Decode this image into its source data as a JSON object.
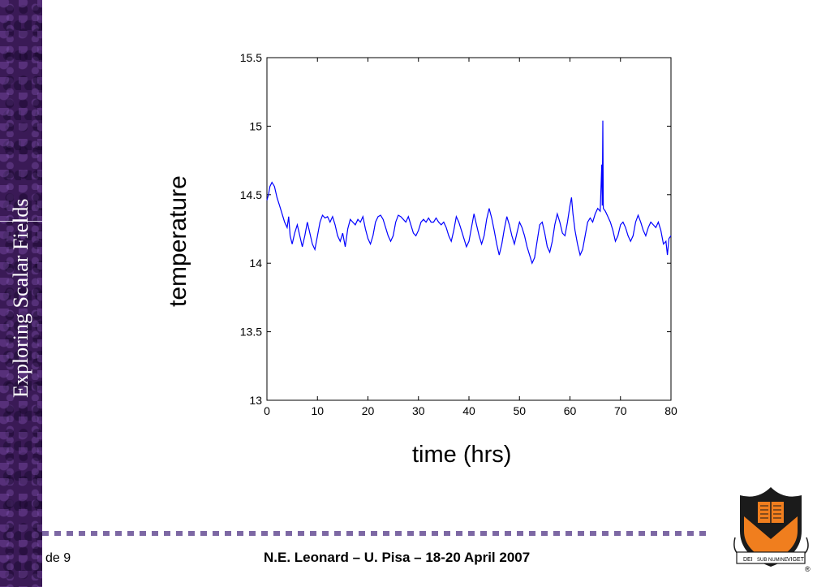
{
  "sidebar": {
    "title": "Exploring Scalar Fields"
  },
  "footer": {
    "slide_number": "de 9",
    "text": "N.E. Leonard – U. Pisa – 18-20 April 2007"
  },
  "logo": {
    "icon": "princeton-shield-icon",
    "motto_left": "DEI",
    "motto_center": "SUB NUMINE",
    "motto_right": "VIGET",
    "registered": "®"
  },
  "colors": {
    "sidebar": "#3a1a56",
    "line": "#0000ff",
    "divider": "#7d68a4",
    "shield": "#f07e1e"
  },
  "chart_data": {
    "type": "line",
    "title": "",
    "xlabel": "time (hrs)",
    "ylabel": "temperature",
    "xlim": [
      0,
      80
    ],
    "ylim": [
      13,
      15.5
    ],
    "xticks": [
      0,
      10,
      20,
      30,
      40,
      50,
      60,
      70,
      80
    ],
    "yticks": [
      13,
      13.5,
      14,
      14.5,
      15,
      15.5
    ],
    "ytick_labels": [
      "13",
      "13.5",
      "14",
      "14.5",
      "15",
      "15.5"
    ],
    "grid": false,
    "series": [
      {
        "color": "#0000ff",
        "points": [
          [
            0,
            14.46
          ],
          [
            0.3,
            14.5
          ],
          [
            0.6,
            14.56
          ],
          [
            1.0,
            14.59
          ],
          [
            1.5,
            14.56
          ],
          [
            2.0,
            14.48
          ],
          [
            2.5,
            14.42
          ],
          [
            3.0,
            14.36
          ],
          [
            3.5,
            14.3
          ],
          [
            4.0,
            14.26
          ],
          [
            4.3,
            14.34
          ],
          [
            4.6,
            14.2
          ],
          [
            5.0,
            14.14
          ],
          [
            5.5,
            14.22
          ],
          [
            6.0,
            14.28
          ],
          [
            6.5,
            14.2
          ],
          [
            7.0,
            14.12
          ],
          [
            7.5,
            14.2
          ],
          [
            8.0,
            14.3
          ],
          [
            8.5,
            14.22
          ],
          [
            9.0,
            14.14
          ],
          [
            9.5,
            14.1
          ],
          [
            10.0,
            14.2
          ],
          [
            10.5,
            14.3
          ],
          [
            11.0,
            14.35
          ],
          [
            11.5,
            14.33
          ],
          [
            12.0,
            14.34
          ],
          [
            12.5,
            14.3
          ],
          [
            13.0,
            14.34
          ],
          [
            13.5,
            14.28
          ],
          [
            14.0,
            14.2
          ],
          [
            14.5,
            14.16
          ],
          [
            15.0,
            14.22
          ],
          [
            15.5,
            14.12
          ],
          [
            16.0,
            14.25
          ],
          [
            16.5,
            14.32
          ],
          [
            17.0,
            14.3
          ],
          [
            17.5,
            14.28
          ],
          [
            18.0,
            14.32
          ],
          [
            18.5,
            14.3
          ],
          [
            19.0,
            14.34
          ],
          [
            19.5,
            14.25
          ],
          [
            20.0,
            14.18
          ],
          [
            20.5,
            14.14
          ],
          [
            21.0,
            14.2
          ],
          [
            21.5,
            14.3
          ],
          [
            22.0,
            14.34
          ],
          [
            22.5,
            14.35
          ],
          [
            23.0,
            14.32
          ],
          [
            23.5,
            14.26
          ],
          [
            24.0,
            14.2
          ],
          [
            24.5,
            14.16
          ],
          [
            25.0,
            14.2
          ],
          [
            25.5,
            14.3
          ],
          [
            26.0,
            14.35
          ],
          [
            26.5,
            14.34
          ],
          [
            27.0,
            14.32
          ],
          [
            27.5,
            14.3
          ],
          [
            28.0,
            14.34
          ],
          [
            28.5,
            14.28
          ],
          [
            29.0,
            14.22
          ],
          [
            29.5,
            14.2
          ],
          [
            30.0,
            14.24
          ],
          [
            30.5,
            14.3
          ],
          [
            31.0,
            14.32
          ],
          [
            31.5,
            14.3
          ],
          [
            32.0,
            14.33
          ],
          [
            32.5,
            14.3
          ],
          [
            33.0,
            14.3
          ],
          [
            33.5,
            14.33
          ],
          [
            34.0,
            14.3
          ],
          [
            34.5,
            14.28
          ],
          [
            35.0,
            14.3
          ],
          [
            35.5,
            14.26
          ],
          [
            36.0,
            14.2
          ],
          [
            36.5,
            14.16
          ],
          [
            37.0,
            14.24
          ],
          [
            37.5,
            14.34
          ],
          [
            38.0,
            14.3
          ],
          [
            38.5,
            14.24
          ],
          [
            39.0,
            14.18
          ],
          [
            39.5,
            14.12
          ],
          [
            40.0,
            14.16
          ],
          [
            40.5,
            14.26
          ],
          [
            41.0,
            14.36
          ],
          [
            41.5,
            14.28
          ],
          [
            42.0,
            14.2
          ],
          [
            42.5,
            14.14
          ],
          [
            43.0,
            14.2
          ],
          [
            43.5,
            14.32
          ],
          [
            44.0,
            14.4
          ],
          [
            44.5,
            14.33
          ],
          [
            45.0,
            14.24
          ],
          [
            45.5,
            14.14
          ],
          [
            46.0,
            14.06
          ],
          [
            46.5,
            14.14
          ],
          [
            47.0,
            14.25
          ],
          [
            47.5,
            14.34
          ],
          [
            48.0,
            14.28
          ],
          [
            48.5,
            14.2
          ],
          [
            49.0,
            14.14
          ],
          [
            49.5,
            14.22
          ],
          [
            50.0,
            14.3
          ],
          [
            50.5,
            14.26
          ],
          [
            51.0,
            14.2
          ],
          [
            51.5,
            14.12
          ],
          [
            52.0,
            14.06
          ],
          [
            52.5,
            14.0
          ],
          [
            53.0,
            14.04
          ],
          [
            53.5,
            14.16
          ],
          [
            54.0,
            14.28
          ],
          [
            54.5,
            14.3
          ],
          [
            55.0,
            14.22
          ],
          [
            55.5,
            14.12
          ],
          [
            56.0,
            14.08
          ],
          [
            56.5,
            14.16
          ],
          [
            57.0,
            14.28
          ],
          [
            57.5,
            14.36
          ],
          [
            58.0,
            14.3
          ],
          [
            58.5,
            14.22
          ],
          [
            59.0,
            14.2
          ],
          [
            59.5,
            14.3
          ],
          [
            60.0,
            14.42
          ],
          [
            60.3,
            14.48
          ],
          [
            60.6,
            14.36
          ],
          [
            61.0,
            14.24
          ],
          [
            61.5,
            14.14
          ],
          [
            62.0,
            14.06
          ],
          [
            62.5,
            14.1
          ],
          [
            63.0,
            14.2
          ],
          [
            63.5,
            14.3
          ],
          [
            64.0,
            14.33
          ],
          [
            64.5,
            14.3
          ],
          [
            65.0,
            14.36
          ],
          [
            65.5,
            14.4
          ],
          [
            66.0,
            14.38
          ],
          [
            66.3,
            14.72
          ],
          [
            66.4,
            14.42
          ],
          [
            66.5,
            15.04
          ],
          [
            66.6,
            14.4
          ],
          [
            67.0,
            14.38
          ],
          [
            67.5,
            14.34
          ],
          [
            68.0,
            14.3
          ],
          [
            68.5,
            14.24
          ],
          [
            69.0,
            14.16
          ],
          [
            69.5,
            14.2
          ],
          [
            70.0,
            14.28
          ],
          [
            70.5,
            14.3
          ],
          [
            71.0,
            14.26
          ],
          [
            71.5,
            14.2
          ],
          [
            72.0,
            14.16
          ],
          [
            72.5,
            14.2
          ],
          [
            73.0,
            14.3
          ],
          [
            73.5,
            14.35
          ],
          [
            74.0,
            14.3
          ],
          [
            74.5,
            14.24
          ],
          [
            75.0,
            14.2
          ],
          [
            75.5,
            14.26
          ],
          [
            76.0,
            14.3
          ],
          [
            76.5,
            14.28
          ],
          [
            77.0,
            14.26
          ],
          [
            77.5,
            14.3
          ],
          [
            78.0,
            14.24
          ],
          [
            78.5,
            14.14
          ],
          [
            79.0,
            14.16
          ],
          [
            79.3,
            14.06
          ],
          [
            79.6,
            14.18
          ],
          [
            80.0,
            14.2
          ]
        ]
      }
    ]
  }
}
